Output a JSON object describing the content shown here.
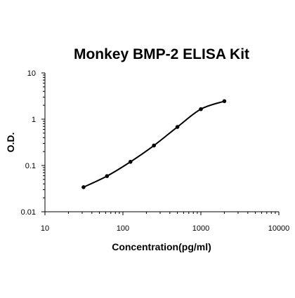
{
  "chart_data": {
    "type": "scatter",
    "title": "Monkey BMP-2 ELISA Kit",
    "xlabel": "Concentration(pg/ml)",
    "ylabel": "O.D.",
    "xscale": "log",
    "yscale": "log",
    "xlim": [
      10,
      10000
    ],
    "ylim": [
      0.01,
      10
    ],
    "xticks": [
      10,
      100,
      1000,
      10000
    ],
    "xtick_labels": [
      "10",
      "100",
      "1000",
      "10000"
    ],
    "yticks": [
      0.01,
      0.1,
      1,
      10
    ],
    "ytick_labels": [
      "0.01",
      "0.1",
      "1",
      "10"
    ],
    "grid": false,
    "legend": "none",
    "curve": "smooth fitted line through points",
    "colors": {
      "line": "#000000",
      "points": "#000000",
      "axes": "#000000",
      "background": "#ffffff"
    },
    "series": [
      {
        "x": [
          31.25,
          62.5,
          125,
          250,
          500,
          1000,
          2000
        ],
        "y": [
          0.034,
          0.059,
          0.12,
          0.27,
          0.68,
          1.65,
          2.45
        ]
      }
    ]
  }
}
